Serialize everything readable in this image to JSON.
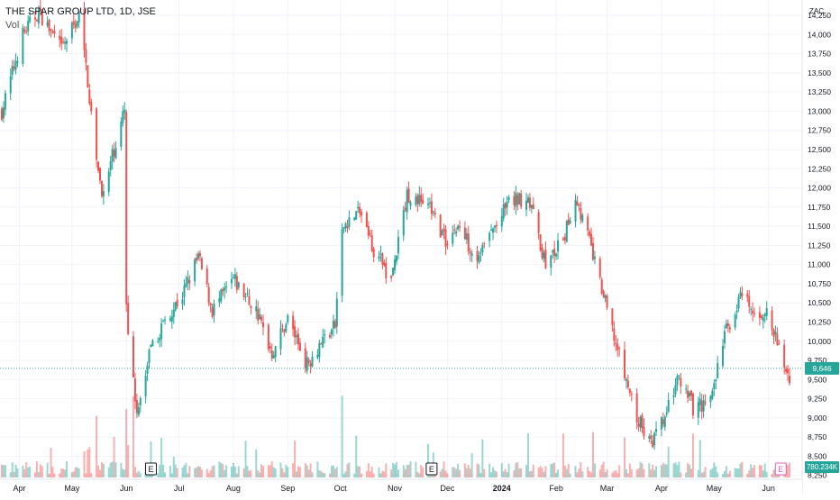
{
  "header": {
    "symbol": "THE SPAR GROUP LTD, 1D, JSE",
    "volume_label": "Vol"
  },
  "chart_data": {
    "type": "candlestick",
    "currency": "ZAC",
    "y_ticks": [
      "14,250",
      "14,000",
      "13,750",
      "13,500",
      "13,250",
      "13,000",
      "12,750",
      "12,500",
      "12,250",
      "12,000",
      "11,750",
      "11,500",
      "11,250",
      "11,000",
      "10,750",
      "10,500",
      "10,250",
      "10,000",
      "9,750",
      "9,500",
      "9,250",
      "9,000",
      "8,750",
      "8,500",
      "8,250"
    ],
    "y_range": [
      8200,
      14450
    ],
    "x_ticks": [
      "Apr",
      "May",
      "Jun",
      "Jul",
      "Aug",
      "Sep",
      "Oct",
      "Nov",
      "Dec",
      "2024",
      "Feb",
      "Mar",
      "Apr",
      "May",
      "Jun"
    ],
    "x_range": [
      "2023-03-22",
      "2024-06-13"
    ],
    "last_price": {
      "value": 9646,
      "label": "9,646"
    },
    "volume_label": "780.234K",
    "earnings_markers": [
      {
        "date": "2023-06-15",
        "label": "E"
      },
      {
        "date": "2023-11-22",
        "label": "E"
      },
      {
        "date": "2024-06-08",
        "label": "E"
      }
    ],
    "up_color": "#26a69a",
    "down_color": "#ef5350",
    "price_path": [
      {
        "date": "2023-03-22",
        "close": 13000
      },
      {
        "date": "2023-04-03",
        "close": 14000
      },
      {
        "date": "2023-04-12",
        "close": 14300
      },
      {
        "date": "2023-04-25",
        "close": 13800
      },
      {
        "date": "2023-05-05",
        "close": 14250
      },
      {
        "date": "2023-05-10",
        "close": 13400
      },
      {
        "date": "2023-05-15",
        "close": 12300
      },
      {
        "date": "2023-05-19",
        "close": 11900
      },
      {
        "date": "2023-05-25",
        "close": 12500
      },
      {
        "date": "2023-05-31",
        "close": 13000
      },
      {
        "date": "2023-06-01",
        "close": 10400
      },
      {
        "date": "2023-06-05",
        "close": 9600
      },
      {
        "date": "2023-06-07",
        "close": 9000
      },
      {
        "date": "2023-06-14",
        "close": 9800
      },
      {
        "date": "2023-06-23",
        "close": 10300
      },
      {
        "date": "2023-07-03",
        "close": 10600
      },
      {
        "date": "2023-07-12",
        "close": 11100
      },
      {
        "date": "2023-07-20",
        "close": 10400
      },
      {
        "date": "2023-08-01",
        "close": 10800
      },
      {
        "date": "2023-08-14",
        "close": 10400
      },
      {
        "date": "2023-08-23",
        "close": 9850
      },
      {
        "date": "2023-09-01",
        "close": 10300
      },
      {
        "date": "2023-09-12",
        "close": 9700
      },
      {
        "date": "2023-09-20",
        "close": 10000
      },
      {
        "date": "2023-09-28",
        "close": 10200
      },
      {
        "date": "2023-10-02",
        "close": 11500
      },
      {
        "date": "2023-10-12",
        "close": 11700
      },
      {
        "date": "2023-10-20",
        "close": 11200
      },
      {
        "date": "2023-10-30",
        "close": 10800
      },
      {
        "date": "2023-11-08",
        "close": 11900
      },
      {
        "date": "2023-11-20",
        "close": 11800
      },
      {
        "date": "2023-11-30",
        "close": 11300
      },
      {
        "date": "2023-12-07",
        "close": 11500
      },
      {
        "date": "2023-12-18",
        "close": 11100
      },
      {
        "date": "2024-01-05",
        "close": 11800
      },
      {
        "date": "2024-01-16",
        "close": 11900
      },
      {
        "date": "2024-01-26",
        "close": 11000
      },
      {
        "date": "2024-02-05",
        "close": 11300
      },
      {
        "date": "2024-02-12",
        "close": 11900
      },
      {
        "date": "2024-02-20",
        "close": 11300
      },
      {
        "date": "2024-03-01",
        "close": 10400
      },
      {
        "date": "2024-03-08",
        "close": 9800
      },
      {
        "date": "2024-03-18",
        "close": 9000
      },
      {
        "date": "2024-03-26",
        "close": 8650
      },
      {
        "date": "2024-04-03",
        "close": 9000
      },
      {
        "date": "2024-04-10",
        "close": 9500
      },
      {
        "date": "2024-04-20",
        "close": 9100
      },
      {
        "date": "2024-04-30",
        "close": 9300
      },
      {
        "date": "2024-05-07",
        "close": 10100
      },
      {
        "date": "2024-05-17",
        "close": 10600
      },
      {
        "date": "2024-05-24",
        "close": 10300
      },
      {
        "date": "2024-05-30",
        "close": 10400
      },
      {
        "date": "2024-06-07",
        "close": 9900
      },
      {
        "date": "2024-06-13",
        "close": 9500
      }
    ]
  }
}
